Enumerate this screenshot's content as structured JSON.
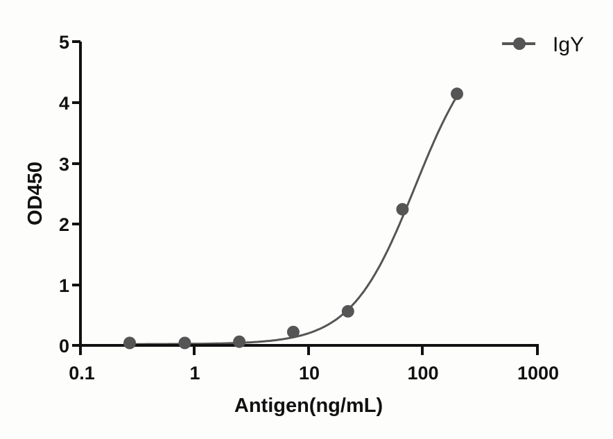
{
  "chart_data": {
    "type": "scatter",
    "title": "",
    "xlabel": "Antigen(ng/mL)",
    "ylabel": "OD450",
    "xscale": "log",
    "xlim": [
      0.1,
      1000
    ],
    "ylim": [
      0,
      5
    ],
    "x_ticks": [
      "0.1",
      "1",
      "10",
      "100",
      "1000"
    ],
    "y_ticks": [
      "0",
      "1",
      "2",
      "3",
      "4",
      "5"
    ],
    "grid": false,
    "legend_position": "top-right",
    "series": [
      {
        "name": "IgY",
        "color": "#555555",
        "marker": "circle",
        "fit": "sigmoidal curve",
        "x": [
          0.27,
          0.82,
          2.46,
          7.3,
          22,
          66,
          198
        ],
        "y": [
          0.04,
          0.04,
          0.06,
          0.22,
          0.56,
          2.24,
          4.14
        ]
      }
    ]
  },
  "axes": {
    "xlabel": "Antigen(ng/mL)",
    "ylabel": "OD450",
    "x_ticks": [
      "0.1",
      "1",
      "10",
      "100",
      "1000"
    ],
    "y_ticks": [
      "0",
      "1",
      "2",
      "3",
      "4",
      "5"
    ]
  },
  "legend": {
    "label": "IgY"
  }
}
